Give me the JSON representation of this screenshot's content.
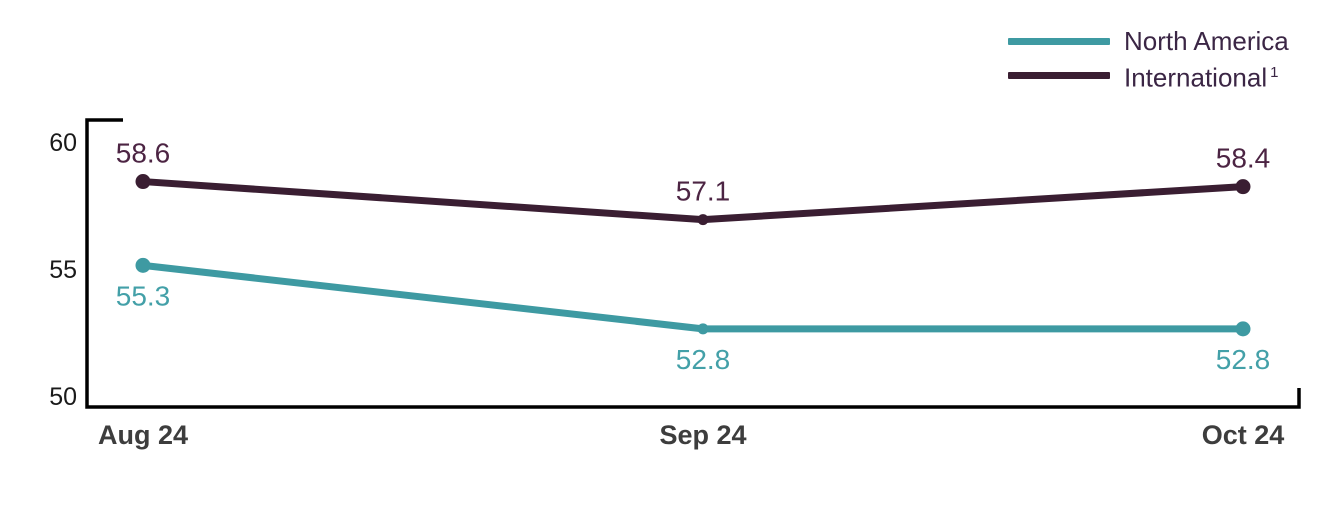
{
  "chart_data": {
    "type": "line",
    "title": "",
    "categories": [
      "Aug 24",
      "Sep 24",
      "Oct 24"
    ],
    "series": [
      {
        "name": "North America",
        "values": [
          55.3,
          52.8,
          52.8
        ],
        "color": "#3E9AA2",
        "label_color": "#43A0A8",
        "label_position": "below"
      },
      {
        "name": "International",
        "superscript": "1",
        "values": [
          58.6,
          57.1,
          58.4
        ],
        "color": "#3A1E32",
        "label_color": "#4C2443",
        "label_position": "above"
      }
    ],
    "ytick_values": [
      60,
      55,
      50
    ],
    "ylim": [
      50,
      60
    ],
    "grid": false,
    "legend_position": "top-right",
    "axis_color": "#000000",
    "xtick_color": "#3D3D3D",
    "ytick_color": "#1A1A1A",
    "legend_text_color": "#3B2645",
    "background": "#FFFFFF"
  }
}
